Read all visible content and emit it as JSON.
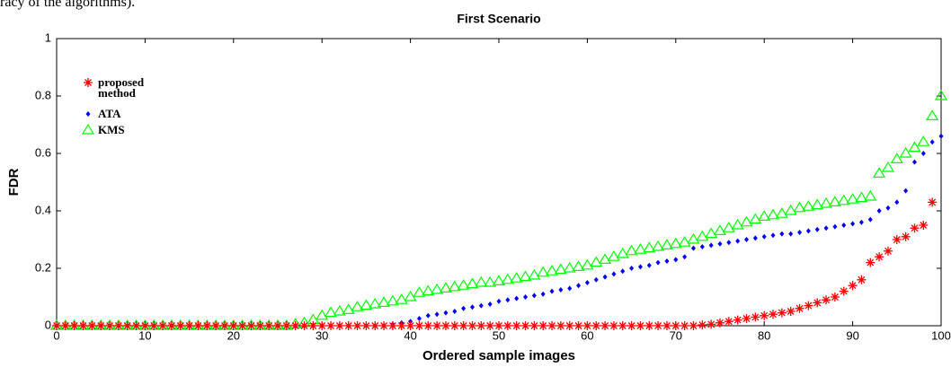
{
  "fragment_text": "racy of the algorithms).",
  "chart_data": {
    "type": "scatter",
    "title": "First Scenario",
    "x_label": "Ordered sample images",
    "y_label": "FDR",
    "xlim": [
      0,
      100
    ],
    "ylim": [
      0,
      1
    ],
    "xticks": [
      0,
      10,
      20,
      30,
      40,
      50,
      60,
      70,
      80,
      90,
      100
    ],
    "yticks": [
      0,
      0.2,
      0.4,
      0.6,
      0.8,
      1
    ],
    "legend": "upper left",
    "x": [
      0,
      1,
      2,
      3,
      4,
      5,
      6,
      7,
      8,
      9,
      10,
      11,
      12,
      13,
      14,
      15,
      16,
      17,
      18,
      19,
      20,
      21,
      22,
      23,
      24,
      25,
      26,
      27,
      28,
      29,
      30,
      31,
      32,
      33,
      34,
      35,
      36,
      37,
      38,
      39,
      40,
      41,
      42,
      43,
      44,
      45,
      46,
      47,
      48,
      49,
      50,
      51,
      52,
      53,
      54,
      55,
      56,
      57,
      58,
      59,
      60,
      61,
      62,
      63,
      64,
      65,
      66,
      67,
      68,
      69,
      70,
      71,
      72,
      73,
      74,
      75,
      76,
      77,
      78,
      79,
      80,
      81,
      82,
      83,
      84,
      85,
      86,
      87,
      88,
      89,
      90,
      91,
      92,
      93,
      94,
      95,
      96,
      97,
      98,
      99,
      100
    ],
    "series": [
      {
        "name": "proposed method",
        "color": "#ff0000",
        "marker": "asterisk",
        "values": [
          0,
          0,
          0,
          0,
          0,
          0,
          0,
          0,
          0,
          0,
          0,
          0,
          0,
          0,
          0,
          0,
          0,
          0,
          0,
          0,
          0,
          0,
          0,
          0,
          0,
          0,
          0,
          0,
          0,
          0,
          0,
          0,
          0,
          0,
          0,
          0,
          0,
          0,
          0,
          0,
          0,
          0,
          0,
          0,
          0,
          0,
          0,
          0,
          0,
          0,
          0,
          0,
          0,
          0,
          0,
          0,
          0,
          0,
          0,
          0,
          0,
          0,
          0,
          0,
          0,
          0,
          0,
          0,
          0,
          0,
          0,
          0,
          0,
          0.003,
          0.005,
          0.01,
          0.015,
          0.02,
          0.025,
          0.03,
          0.035,
          0.04,
          0.045,
          0.05,
          0.06,
          0.07,
          0.08,
          0.09,
          0.1,
          0.12,
          0.14,
          0.16,
          0.22,
          0.24,
          0.26,
          0.3,
          0.31,
          0.34,
          0.35,
          0.43
        ]
      },
      {
        "name": "ATA",
        "color": "#0000ff",
        "marker": "diamond",
        "values": [
          0,
          0,
          0,
          0,
          0,
          0,
          0,
          0,
          0,
          0,
          0,
          0,
          0,
          0,
          0,
          0,
          0,
          0,
          0,
          0,
          0,
          0,
          0,
          0,
          0,
          0,
          0,
          0,
          0,
          0,
          0,
          0,
          0,
          0,
          0,
          0,
          0,
          0,
          0.005,
          0.01,
          0.015,
          0.025,
          0.035,
          0.04,
          0.045,
          0.05,
          0.06,
          0.065,
          0.07,
          0.075,
          0.085,
          0.09,
          0.095,
          0.1,
          0.105,
          0.11,
          0.12,
          0.125,
          0.13,
          0.14,
          0.15,
          0.16,
          0.17,
          0.18,
          0.19,
          0.2,
          0.205,
          0.21,
          0.22,
          0.225,
          0.23,
          0.24,
          0.27,
          0.275,
          0.28,
          0.285,
          0.29,
          0.295,
          0.3,
          0.305,
          0.31,
          0.315,
          0.32,
          0.32,
          0.325,
          0.33,
          0.335,
          0.34,
          0.345,
          0.35,
          0.355,
          0.36,
          0.37,
          0.4,
          0.41,
          0.43,
          0.47,
          0.57,
          0.6,
          0.64,
          0.66
        ]
      },
      {
        "name": "KMS",
        "color": "#00ff00",
        "marker": "triangle",
        "values": [
          0,
          0,
          0,
          0,
          0,
          0,
          0,
          0,
          0,
          0,
          0,
          0,
          0,
          0,
          0,
          0,
          0,
          0,
          0,
          0,
          0,
          0,
          0,
          0,
          0,
          0,
          0,
          0.005,
          0.01,
          0.02,
          0.035,
          0.045,
          0.05,
          0.055,
          0.065,
          0.07,
          0.075,
          0.08,
          0.085,
          0.09,
          0.1,
          0.115,
          0.12,
          0.125,
          0.13,
          0.135,
          0.14,
          0.145,
          0.15,
          0.15,
          0.155,
          0.16,
          0.165,
          0.17,
          0.175,
          0.185,
          0.19,
          0.195,
          0.2,
          0.205,
          0.21,
          0.22,
          0.23,
          0.24,
          0.25,
          0.26,
          0.265,
          0.27,
          0.275,
          0.28,
          0.285,
          0.29,
          0.3,
          0.31,
          0.32,
          0.33,
          0.34,
          0.35,
          0.36,
          0.37,
          0.38,
          0.385,
          0.39,
          0.4,
          0.41,
          0.415,
          0.42,
          0.425,
          0.43,
          0.435,
          0.44,
          0.445,
          0.45,
          0.53,
          0.55,
          0.58,
          0.6,
          0.62,
          0.64,
          0.73,
          0.8
        ]
      }
    ]
  }
}
